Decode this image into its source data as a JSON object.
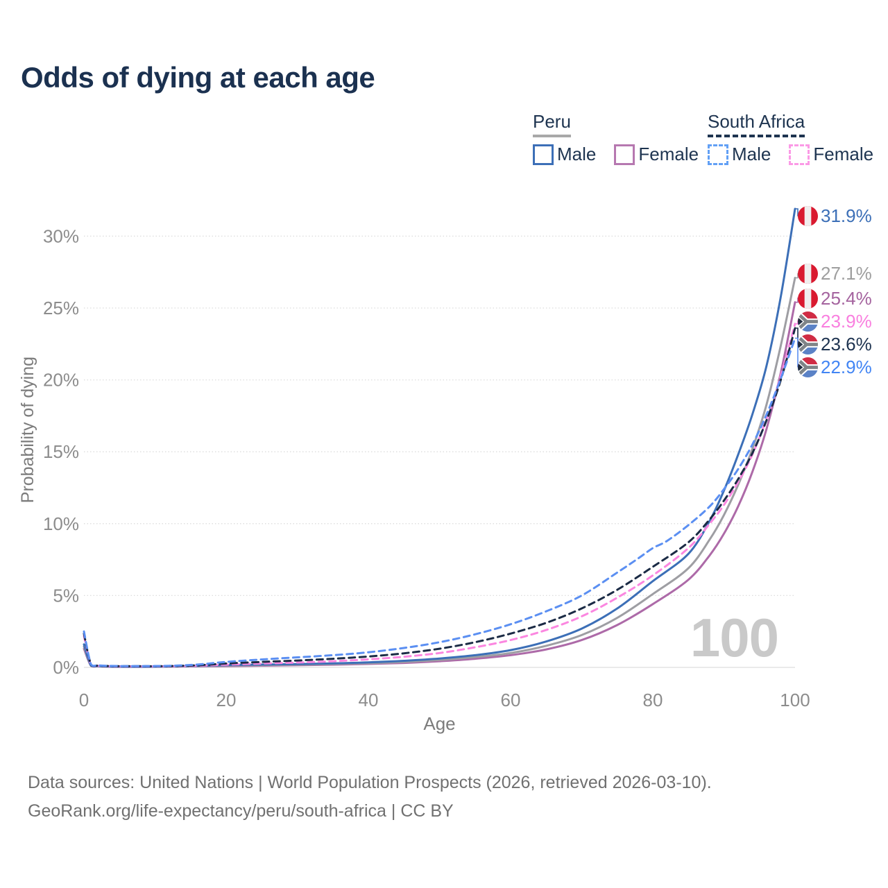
{
  "title": "Odds of dying at each age",
  "legend": {
    "peru": {
      "name": "Peru",
      "line_color": "#a8a8a8",
      "line_style": "solid",
      "male_label": "Male",
      "female_label": "Female"
    },
    "za": {
      "name": "South Africa",
      "line_color": "#1e3450",
      "line_style": "dashed",
      "male_label": "Male",
      "female_label": "Female"
    }
  },
  "watermark": "100",
  "footer": {
    "line1": "Data sources: United Nations | World Population Prospects (2026, retrieved 2026-03-10).",
    "line2": "GeoRank.org/life-expectancy/peru/south-africa | CC BY"
  },
  "chart_data": {
    "type": "line",
    "title": "Odds of dying at each age",
    "xlabel": "Age",
    "ylabel": "Probability of dying",
    "xlim": [
      0,
      100
    ],
    "ylim_percent": [
      0,
      32
    ],
    "x_tick_values": [
      0,
      20,
      40,
      60,
      80,
      100
    ],
    "x_tick_labels": [
      "0",
      "20",
      "40",
      "60",
      "80",
      "100"
    ],
    "y_tick_values": [
      0,
      5,
      10,
      15,
      20,
      25,
      30
    ],
    "y_tick_labels": [
      "0%",
      "5%",
      "10%",
      "15%",
      "20%",
      "25%",
      "30%"
    ],
    "grid": "horizontal-only",
    "legend_position": "top-right",
    "series": [
      {
        "key": "peru-female",
        "name": "Peru Female",
        "country": "Peru",
        "sex": "Female",
        "color": "#ad6aa8",
        "dash": "solid",
        "end_label": {
          "value": "25.4%",
          "color": "#a4639e",
          "flag": "peru-flag-icon"
        },
        "points": [
          [
            0,
            1.3
          ],
          [
            1,
            0.1
          ],
          [
            2,
            0.07
          ],
          [
            4,
            0.04
          ],
          [
            8,
            0.04
          ],
          [
            12,
            0.05
          ],
          [
            16,
            0.07
          ],
          [
            20,
            0.09
          ],
          [
            25,
            0.12
          ],
          [
            30,
            0.15
          ],
          [
            35,
            0.19
          ],
          [
            40,
            0.24
          ],
          [
            45,
            0.31
          ],
          [
            50,
            0.43
          ],
          [
            55,
            0.6
          ],
          [
            60,
            0.85
          ],
          [
            65,
            1.25
          ],
          [
            70,
            1.9
          ],
          [
            75,
            2.95
          ],
          [
            80,
            4.4
          ],
          [
            85,
            6.1
          ],
          [
            88,
            7.8
          ],
          [
            90,
            9.3
          ],
          [
            92,
            11.2
          ],
          [
            94,
            13.6
          ],
          [
            96,
            16.6
          ],
          [
            98,
            20.5
          ],
          [
            100,
            25.4
          ]
        ]
      },
      {
        "key": "peru-both",
        "name": "Peru Both sexes",
        "country": "Peru",
        "sex": "Both",
        "color": "#9e9ea3",
        "dash": "solid",
        "end_label": {
          "value": "27.1%",
          "color": "#9e9e9e",
          "flag": "peru-flag-icon"
        },
        "points": [
          [
            0,
            1.45
          ],
          [
            1,
            0.11
          ],
          [
            2,
            0.08
          ],
          [
            4,
            0.05
          ],
          [
            8,
            0.045
          ],
          [
            12,
            0.06
          ],
          [
            16,
            0.09
          ],
          [
            20,
            0.13
          ],
          [
            25,
            0.16
          ],
          [
            30,
            0.19
          ],
          [
            35,
            0.23
          ],
          [
            40,
            0.29
          ],
          [
            45,
            0.38
          ],
          [
            50,
            0.52
          ],
          [
            55,
            0.72
          ],
          [
            60,
            1.0
          ],
          [
            65,
            1.5
          ],
          [
            70,
            2.25
          ],
          [
            75,
            3.45
          ],
          [
            80,
            5.1
          ],
          [
            85,
            6.9
          ],
          [
            88,
            8.9
          ],
          [
            90,
            10.6
          ],
          [
            92,
            12.7
          ],
          [
            94,
            15.2
          ],
          [
            96,
            18.3
          ],
          [
            98,
            22.4
          ],
          [
            100,
            27.1
          ]
        ]
      },
      {
        "key": "peru-male",
        "name": "Peru Male",
        "country": "Peru",
        "sex": "Male",
        "color": "#3c6fb7",
        "dash": "solid",
        "end_label": {
          "value": "31.9%",
          "color": "#3c6fb7",
          "flag": "peru-flag-icon"
        },
        "points": [
          [
            0,
            1.6
          ],
          [
            1,
            0.12
          ],
          [
            2,
            0.09
          ],
          [
            4,
            0.06
          ],
          [
            8,
            0.05
          ],
          [
            12,
            0.07
          ],
          [
            16,
            0.11
          ],
          [
            20,
            0.16
          ],
          [
            25,
            0.2
          ],
          [
            30,
            0.23
          ],
          [
            35,
            0.28
          ],
          [
            40,
            0.35
          ],
          [
            45,
            0.46
          ],
          [
            50,
            0.62
          ],
          [
            55,
            0.85
          ],
          [
            60,
            1.2
          ],
          [
            65,
            1.8
          ],
          [
            70,
            2.7
          ],
          [
            75,
            4.1
          ],
          [
            80,
            6.0
          ],
          [
            85,
            7.9
          ],
          [
            88,
            10.2
          ],
          [
            90,
            12.3
          ],
          [
            92,
            14.8
          ],
          [
            94,
            17.6
          ],
          [
            96,
            21.0
          ],
          [
            98,
            25.8
          ],
          [
            100,
            31.9
          ]
        ]
      },
      {
        "key": "za-female",
        "name": "South Africa Female",
        "country": "South Africa",
        "sex": "Female",
        "color": "#fb87e0",
        "dash": "dashed",
        "end_label": {
          "value": "23.9%",
          "color": "#f97fdf",
          "flag": "za-flag-icon"
        },
        "points": [
          [
            0,
            2.2
          ],
          [
            1,
            0.16
          ],
          [
            2,
            0.11
          ],
          [
            4,
            0.08
          ],
          [
            8,
            0.07
          ],
          [
            12,
            0.08
          ],
          [
            16,
            0.12
          ],
          [
            20,
            0.19
          ],
          [
            25,
            0.27
          ],
          [
            30,
            0.34
          ],
          [
            35,
            0.43
          ],
          [
            40,
            0.56
          ],
          [
            45,
            0.74
          ],
          [
            50,
            1.0
          ],
          [
            55,
            1.4
          ],
          [
            60,
            1.9
          ],
          [
            65,
            2.6
          ],
          [
            70,
            3.55
          ],
          [
            75,
            4.85
          ],
          [
            80,
            6.4
          ],
          [
            85,
            8.3
          ],
          [
            88,
            10.0
          ],
          [
            90,
            11.3
          ],
          [
            92,
            12.9
          ],
          [
            94,
            14.8
          ],
          [
            96,
            17.3
          ],
          [
            98,
            20.3
          ],
          [
            100,
            23.9
          ]
        ]
      },
      {
        "key": "za-both",
        "name": "South Africa Both sexes",
        "country": "South Africa",
        "sex": "Both",
        "color": "#1b2b45",
        "dash": "dashed",
        "end_label": {
          "value": "23.6%",
          "color": "#1e3350",
          "flag": "za-flag-icon"
        },
        "points": [
          [
            0,
            2.35
          ],
          [
            1,
            0.18
          ],
          [
            2,
            0.12
          ],
          [
            4,
            0.09
          ],
          [
            8,
            0.08
          ],
          [
            12,
            0.09
          ],
          [
            16,
            0.15
          ],
          [
            20,
            0.27
          ],
          [
            25,
            0.38
          ],
          [
            30,
            0.48
          ],
          [
            35,
            0.6
          ],
          [
            40,
            0.76
          ],
          [
            45,
            0.98
          ],
          [
            50,
            1.3
          ],
          [
            55,
            1.75
          ],
          [
            60,
            2.35
          ],
          [
            65,
            3.1
          ],
          [
            70,
            4.1
          ],
          [
            75,
            5.4
          ],
          [
            80,
            7.0
          ],
          [
            85,
            8.7
          ],
          [
            88,
            10.3
          ],
          [
            90,
            11.6
          ],
          [
            92,
            13.1
          ],
          [
            94,
            14.9
          ],
          [
            96,
            17.2
          ],
          [
            98,
            20.0
          ],
          [
            100,
            23.6
          ]
        ]
      },
      {
        "key": "za-male",
        "name": "South Africa Male",
        "country": "South Africa",
        "sex": "Male",
        "color": "#5b8ff2",
        "dash": "dashed",
        "end_label": {
          "value": "22.9%",
          "color": "#4285f4",
          "flag": "za-flag-icon"
        },
        "points": [
          [
            0,
            2.5
          ],
          [
            1,
            0.2
          ],
          [
            2,
            0.14
          ],
          [
            4,
            0.1
          ],
          [
            8,
            0.09
          ],
          [
            12,
            0.11
          ],
          [
            16,
            0.2
          ],
          [
            20,
            0.38
          ],
          [
            25,
            0.55
          ],
          [
            30,
            0.7
          ],
          [
            35,
            0.85
          ],
          [
            40,
            1.05
          ],
          [
            45,
            1.35
          ],
          [
            50,
            1.75
          ],
          [
            55,
            2.3
          ],
          [
            60,
            3.0
          ],
          [
            65,
            3.9
          ],
          [
            70,
            5.0
          ],
          [
            75,
            6.6
          ],
          [
            78,
            7.6
          ],
          [
            80,
            8.3
          ],
          [
            82,
            8.8
          ],
          [
            85,
            9.9
          ],
          [
            88,
            11.2
          ],
          [
            90,
            12.4
          ],
          [
            92,
            13.8
          ],
          [
            94,
            15.5
          ],
          [
            96,
            17.6
          ],
          [
            98,
            20.1
          ],
          [
            100,
            22.9
          ]
        ]
      }
    ]
  }
}
